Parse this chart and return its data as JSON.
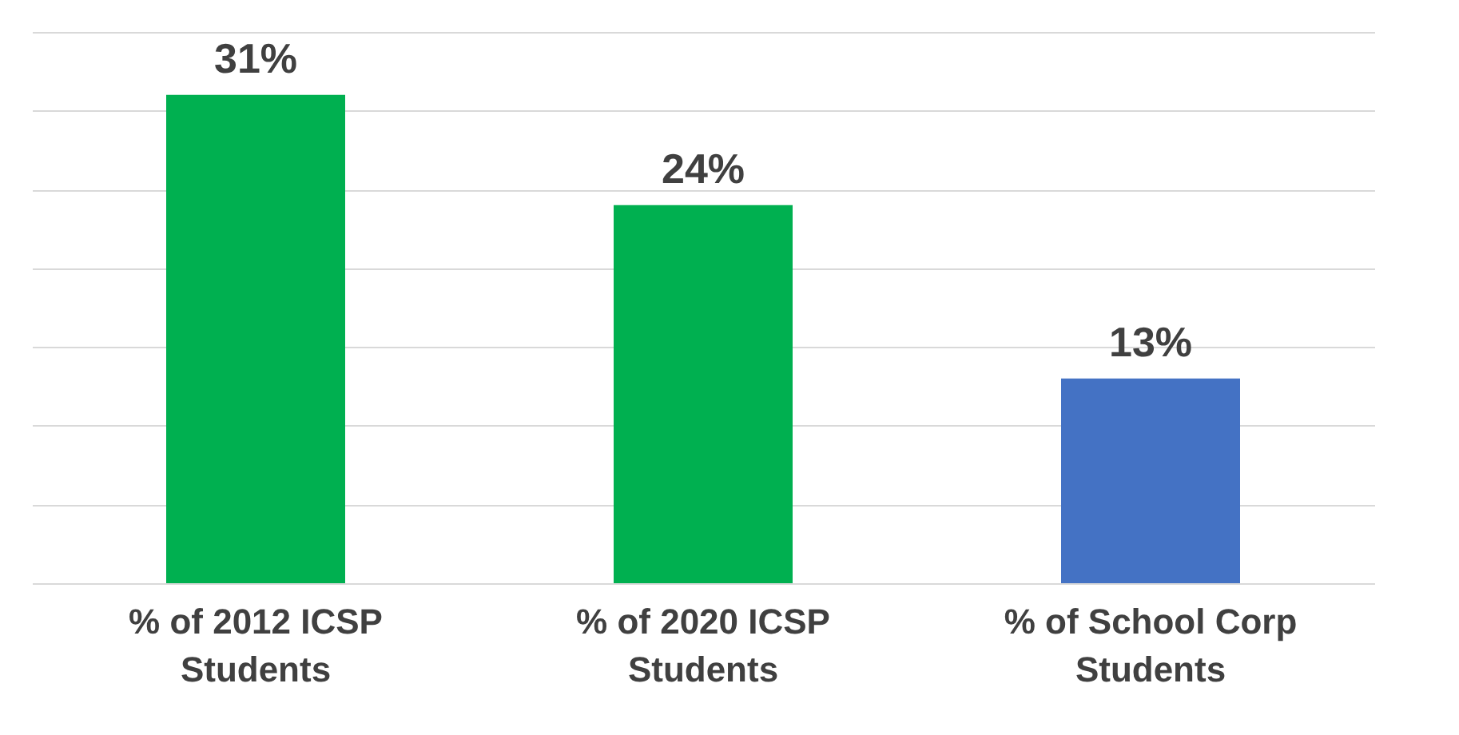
{
  "chart_data": {
    "type": "bar",
    "categories": [
      "% of 2012 ICSP Students",
      "% of 2020 ICSP Students",
      "% of School Corp Students"
    ],
    "values": [
      31,
      24,
      13
    ],
    "colors": [
      "#00b050",
      "#00b050",
      "#4472c4"
    ],
    "value_labels": [
      "31%",
      "24%",
      "13%"
    ],
    "ylim": [
      0,
      35
    ],
    "yticks": [
      {
        "value": 0,
        "label": null
      },
      {
        "value": 5,
        "label": null
      },
      {
        "value": 10,
        "label": null
      },
      {
        "value": 15,
        "label": null
      },
      {
        "value": 20,
        "label": null
      },
      {
        "value": 25,
        "label": null
      },
      {
        "value": 30,
        "label": null
      },
      {
        "value": 35,
        "label": null
      }
    ],
    "grid": "y",
    "tick_labels": "x"
  }
}
